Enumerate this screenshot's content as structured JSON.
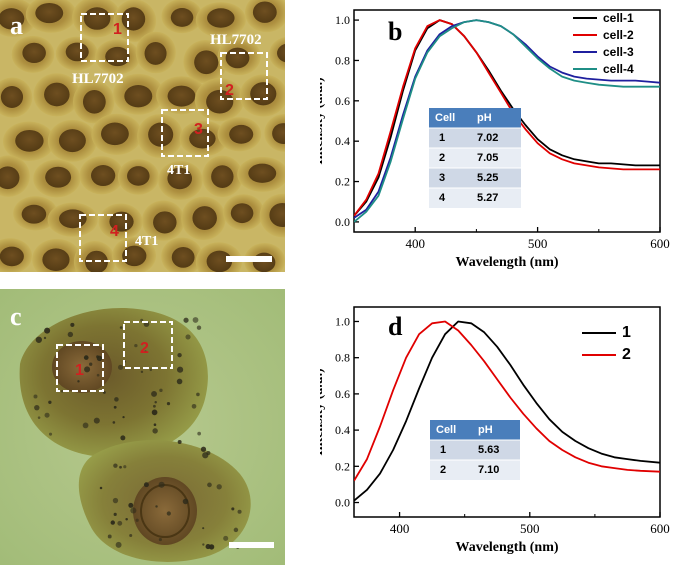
{
  "figure": {
    "panel_a": {
      "letter": "a",
      "boxes": [
        {
          "number": "1",
          "label": "HL7702"
        },
        {
          "number": "2",
          "label": "HL7702"
        },
        {
          "number": "3",
          "label": "4T1"
        },
        {
          "number": "4",
          "label": "4T1"
        }
      ]
    },
    "panel_c": {
      "letter": "c",
      "boxes": [
        {
          "number": "1"
        },
        {
          "number": "2"
        }
      ]
    },
    "colors": {
      "cell1": "#000000",
      "cell2": "#e00000",
      "cell3": "#1f1f9e",
      "cell4": "#1f8e86",
      "table_header": "#4a7ebb",
      "table_row_dark": "#cfd8e6",
      "table_row_light": "#e8edf4",
      "box_number": "#d12020"
    }
  },
  "chart_data": [
    {
      "panel": "b",
      "type": "line",
      "title": "",
      "xlabel": "Wavelength (nm)",
      "ylabel": "Intensity (a.u.)",
      "xlim": [
        350,
        600
      ],
      "ylim": [
        -0.05,
        1.05
      ],
      "xticks": [
        400,
        500,
        600
      ],
      "yticks": [
        0.0,
        0.2,
        0.4,
        0.6,
        0.8,
        1.0
      ],
      "legend_position": "top-right",
      "x": [
        350,
        360,
        370,
        380,
        390,
        400,
        410,
        420,
        430,
        440,
        450,
        460,
        470,
        480,
        490,
        500,
        510,
        520,
        530,
        540,
        550,
        560,
        570,
        580,
        590,
        600
      ],
      "series": [
        {
          "name": "cell-1",
          "values": [
            0.03,
            0.1,
            0.22,
            0.42,
            0.65,
            0.85,
            0.96,
            1.0,
            0.98,
            0.92,
            0.84,
            0.75,
            0.65,
            0.56,
            0.48,
            0.41,
            0.36,
            0.33,
            0.31,
            0.3,
            0.29,
            0.29,
            0.285,
            0.28,
            0.28,
            0.28
          ]
        },
        {
          "name": "cell-2",
          "values": [
            0.03,
            0.11,
            0.24,
            0.45,
            0.67,
            0.86,
            0.97,
            1.0,
            0.98,
            0.92,
            0.84,
            0.74,
            0.64,
            0.54,
            0.46,
            0.39,
            0.34,
            0.31,
            0.29,
            0.28,
            0.27,
            0.265,
            0.26,
            0.26,
            0.26,
            0.26
          ]
        },
        {
          "name": "cell-3",
          "values": [
            0.02,
            0.06,
            0.15,
            0.32,
            0.53,
            0.72,
            0.85,
            0.93,
            0.97,
            0.99,
            1.0,
            0.99,
            0.97,
            0.93,
            0.88,
            0.82,
            0.77,
            0.74,
            0.72,
            0.71,
            0.705,
            0.7,
            0.7,
            0.7,
            0.695,
            0.69
          ]
        },
        {
          "name": "cell-4",
          "values": [
            0.0,
            0.05,
            0.13,
            0.3,
            0.51,
            0.71,
            0.84,
            0.92,
            0.96,
            0.99,
            1.0,
            0.99,
            0.97,
            0.93,
            0.87,
            0.81,
            0.76,
            0.72,
            0.7,
            0.69,
            0.68,
            0.675,
            0.67,
            0.67,
            0.67,
            0.67
          ]
        }
      ],
      "table": {
        "headers": [
          "Cell",
          "pH"
        ],
        "rows": [
          [
            "1",
            "7.02"
          ],
          [
            "2",
            "7.05"
          ],
          [
            "3",
            "5.25"
          ],
          [
            "4",
            "5.27"
          ]
        ]
      },
      "panel_letter": "b"
    },
    {
      "panel": "d",
      "type": "line",
      "title": "",
      "xlabel": "Wavelength (nm)",
      "ylabel": "Intensity (a.u.)",
      "xlim": [
        365,
        600
      ],
      "ylim": [
        -0.08,
        1.08
      ],
      "xticks": [
        400,
        500,
        600
      ],
      "yticks": [
        0.0,
        0.2,
        0.4,
        0.6,
        0.8,
        1.0
      ],
      "legend_position": "top-right",
      "x": [
        365,
        375,
        385,
        395,
        405,
        415,
        425,
        435,
        445,
        455,
        465,
        475,
        485,
        495,
        505,
        515,
        525,
        535,
        545,
        555,
        565,
        575,
        585,
        600
      ],
      "series": [
        {
          "name": "1",
          "values": [
            0.01,
            0.07,
            0.16,
            0.29,
            0.45,
            0.63,
            0.8,
            0.93,
            1.0,
            0.99,
            0.94,
            0.86,
            0.76,
            0.65,
            0.55,
            0.46,
            0.39,
            0.34,
            0.3,
            0.27,
            0.25,
            0.24,
            0.23,
            0.22
          ]
        },
        {
          "name": "2",
          "values": [
            0.12,
            0.24,
            0.42,
            0.62,
            0.8,
            0.93,
            0.99,
            1.0,
            0.95,
            0.87,
            0.78,
            0.68,
            0.58,
            0.49,
            0.41,
            0.34,
            0.29,
            0.25,
            0.22,
            0.2,
            0.19,
            0.18,
            0.175,
            0.17
          ]
        }
      ],
      "table": {
        "headers": [
          "Cell",
          "pH"
        ],
        "rows": [
          [
            "1",
            "5.63"
          ],
          [
            "2",
            "7.10"
          ]
        ]
      },
      "panel_letter": "d"
    }
  ]
}
